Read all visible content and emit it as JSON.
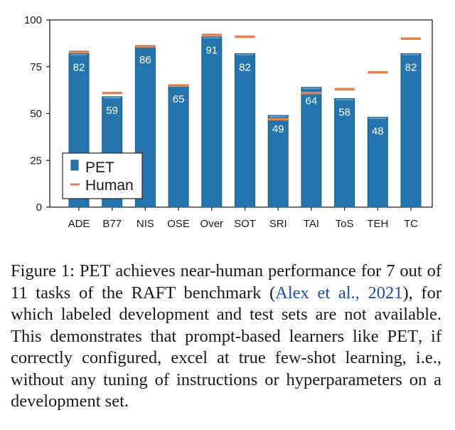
{
  "chart_data": {
    "type": "bar",
    "categories": [
      "ADE",
      "B77",
      "NIS",
      "OSE",
      "Over",
      "SOT",
      "SRI",
      "TAI",
      "ToS",
      "TEH",
      "TC"
    ],
    "series": [
      {
        "name": "PET",
        "values": [
          82,
          59,
          86,
          65,
          91,
          82,
          49,
          64,
          58,
          48,
          82
        ]
      },
      {
        "name": "Human",
        "values": [
          83,
          61,
          86,
          65,
          92,
          91,
          47,
          61,
          63,
          72,
          90
        ]
      }
    ],
    "value_labels": [
      "82",
      "59",
      "86",
      "65",
      "91",
      "82",
      "49",
      "64",
      "58",
      "48",
      "82"
    ],
    "ylim": [
      0,
      100
    ],
    "yticks": [
      0,
      25,
      50,
      75,
      100
    ],
    "ytick_labels": [
      "0",
      "25",
      "50",
      "75",
      "100"
    ],
    "legend": {
      "position": "bottom-left",
      "entries": [
        "PET",
        "Human"
      ]
    },
    "colors": {
      "pet": "#2475ad",
      "pet_edge": "#1c5a88",
      "human": "#e0824f",
      "label": "#ffffff"
    }
  },
  "caption": {
    "label": "Figure 1:",
    "pet_1": "PET",
    "part_1": "achieves near-human performance for 7 out of 11 tasks of the RAFT benchmark (",
    "cite": "Alex et al., 2021",
    "part_2": "), for which labeled development and test sets are not available. This demonstrates that prompt-based learners like",
    "pet_2": "PET",
    "part_3": ", if correctly configured, excel at true few-shot learning, i.e., without any tuning of instructions or hyperparameters on a development set."
  }
}
